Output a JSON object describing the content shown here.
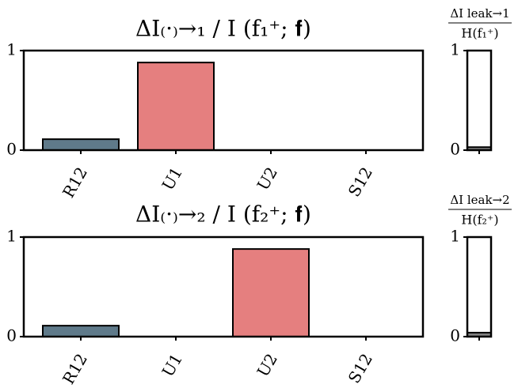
{
  "chart_data": [
    {
      "type": "bar",
      "title": "ΔI₍·₎→₁ / I (f₁⁺; 𝐟)",
      "categories": [
        "R12",
        "U1",
        "U2",
        "S12"
      ],
      "values": [
        0.11,
        0.88,
        0,
        0
      ],
      "colors": [
        "#5f7a8a",
        "#e57f7f",
        "#5f7a8a",
        "#5f7a8a"
      ],
      "ylim": [
        0,
        1
      ],
      "yticks": [
        0,
        1
      ]
    },
    {
      "type": "bar",
      "title": {
        "numerator": "ΔI leak→1",
        "denominator": "H(f₁⁺)"
      },
      "categories": [
        null
      ],
      "values": [
        0.03
      ],
      "colors": [
        "#808080"
      ],
      "ylim": [
        0,
        1
      ],
      "yticks": [
        0,
        1
      ]
    },
    {
      "type": "bar",
      "title": "ΔI₍·₎→₂ / I (f₂⁺; 𝐟)",
      "categories": [
        "R12",
        "U1",
        "U2",
        "S12"
      ],
      "values": [
        0.11,
        0,
        0.88,
        0
      ],
      "colors": [
        "#5f7a8a",
        "#5f7a8a",
        "#e57f7f",
        "#5f7a8a"
      ],
      "ylim": [
        0,
        1
      ],
      "yticks": [
        0,
        1
      ]
    },
    {
      "type": "bar",
      "title": {
        "numerator": "ΔI leak→2",
        "denominator": "H(f₂⁺)"
      },
      "categories": [
        null
      ],
      "values": [
        0.04
      ],
      "colors": [
        "#808080"
      ],
      "ylim": [
        0,
        1
      ],
      "yticks": [
        0,
        1
      ]
    }
  ]
}
